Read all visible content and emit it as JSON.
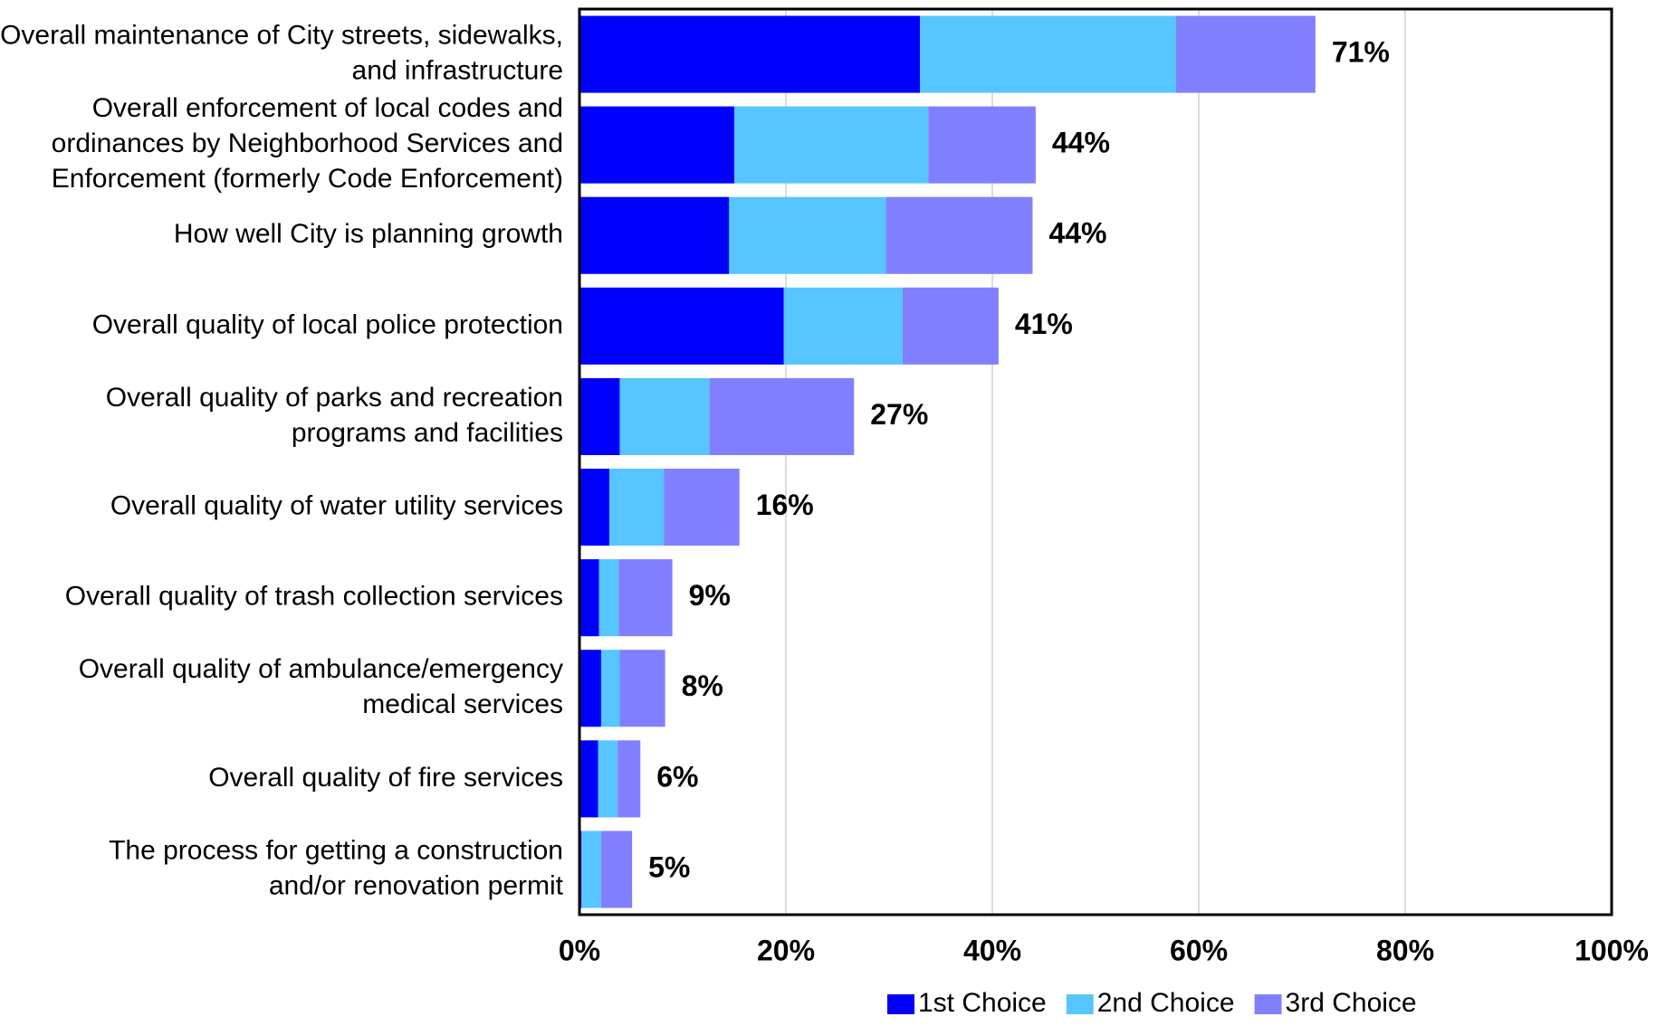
{
  "chart_data": {
    "type": "bar",
    "orientation": "horizontal",
    "stacked": true,
    "categories": [
      [
        "Overall maintenance of City streets, sidewalks,",
        "and infrastructure"
      ],
      [
        "Overall enforcement of local codes and",
        "ordinances by Neighborhood Services and",
        "Enforcement (formerly Code Enforcement)"
      ],
      [
        "How well City is planning growth"
      ],
      [
        "Overall quality of local police protection"
      ],
      [
        "Overall quality of parks and recreation",
        "programs and facilities"
      ],
      [
        "Overall quality of water utility services"
      ],
      [
        "Overall quality of trash collection services"
      ],
      [
        "Overall quality of ambulance/emergency",
        "medical services"
      ],
      [
        "Overall quality of fire services"
      ],
      [
        "The process for getting a construction",
        "and/or renovation permit"
      ]
    ],
    "series": [
      {
        "name": "1st Choice",
        "color": "#0000ff",
        "values": [
          33.0,
          15.0,
          14.5,
          19.8,
          3.9,
          2.9,
          1.9,
          2.1,
          1.8,
          0.2
        ]
      },
      {
        "name": "2nd Choice",
        "color": "#57c5ff",
        "values": [
          24.8,
          18.8,
          15.2,
          11.5,
          8.7,
          5.3,
          1.9,
          1.8,
          1.9,
          1.9
        ]
      },
      {
        "name": "3rd Choice",
        "color": "#8080ff",
        "values": [
          13.5,
          10.4,
          14.2,
          9.3,
          14.0,
          7.3,
          5.2,
          4.4,
          2.2,
          3.0
        ]
      }
    ],
    "totals": [
      "71%",
      "44%",
      "44%",
      "41%",
      "27%",
      "16%",
      "9%",
      "8%",
      "6%",
      "5%"
    ],
    "xlim": [
      0,
      100
    ],
    "x_ticks": [
      0,
      20,
      40,
      60,
      80,
      100
    ],
    "x_tick_labels": [
      "0%",
      "20%",
      "40%",
      "60%",
      "80%",
      "100%"
    ],
    "grid": true,
    "legend": "bottom"
  }
}
